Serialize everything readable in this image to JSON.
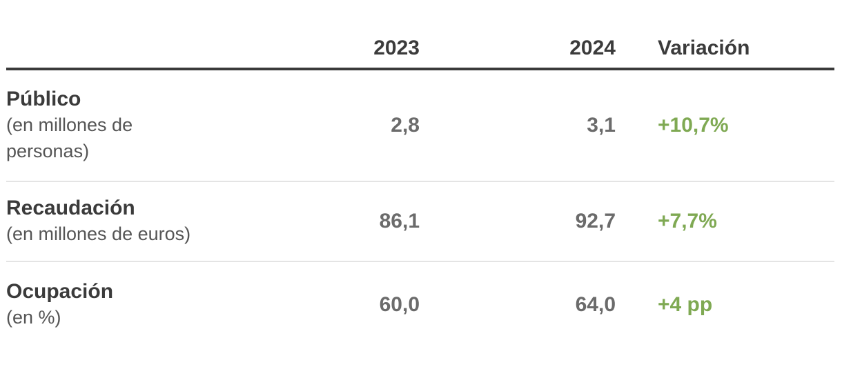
{
  "table": {
    "headers": {
      "year1": "2023",
      "year2": "2024",
      "variation": "Variación"
    },
    "rows": [
      {
        "label": "Público",
        "sublabel_lines": [
          "(en millones de",
          "personas)"
        ],
        "v2023": "2,8",
        "v2024": "3,1",
        "variation": "+10,7%"
      },
      {
        "label": "Recaudación",
        "sublabel_lines": [
          "(en millones de euros)"
        ],
        "v2023": "86,1",
        "v2024": "92,7",
        "variation": "+7,7%"
      },
      {
        "label": "Ocupación",
        "sublabel_lines": [
          "(en %)"
        ],
        "v2023": "60,0",
        "v2024": "64,0",
        "variation": "+4 pp"
      }
    ]
  },
  "colors": {
    "green": "#7fa953",
    "dark": "#3b3b3b",
    "rule": "#3a3a3a",
    "divider": "#e4e4e4"
  },
  "chart_data": {
    "type": "table",
    "columns": [
      "",
      "2023",
      "2024",
      "Variación"
    ],
    "rows": [
      {
        "metric": "Público (en millones de personas)",
        "2023": 2.8,
        "2024": 3.1,
        "variacion": "+10,7%"
      },
      {
        "metric": "Recaudación (en millones de euros)",
        "2023": 86.1,
        "2024": 92.7,
        "variacion": "+7,7%"
      },
      {
        "metric": "Ocupación (en %)",
        "2023": 60.0,
        "2024": 64.0,
        "variacion": "+4 pp"
      }
    ],
    "notes": "Spanish decimal-comma formatting; variation column rendered in green"
  }
}
